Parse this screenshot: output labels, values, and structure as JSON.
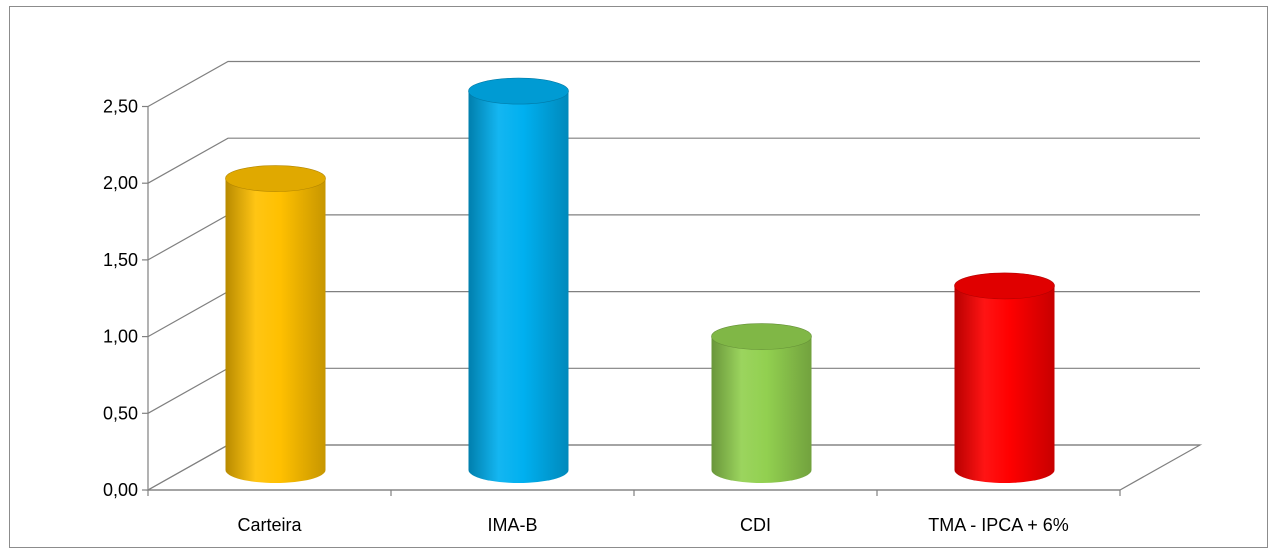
{
  "chart_data": {
    "type": "bar",
    "style": "3d-cylinder",
    "categories": [
      "Carteira",
      "IMA-B",
      "CDI",
      "TMA - IPCA + 6%"
    ],
    "values": [
      1.9,
      2.47,
      0.87,
      1.2
    ],
    "colors": [
      "#ffc000",
      "#00b0f0",
      "#92d050",
      "#ff0000"
    ],
    "ylim": [
      0,
      2.5
    ],
    "yticks": [
      "0,00",
      "0,50",
      "1,00",
      "1,50",
      "2,00",
      "2,50"
    ],
    "grid": true,
    "legend": "none",
    "title": "",
    "xlabel": "",
    "ylabel": ""
  }
}
